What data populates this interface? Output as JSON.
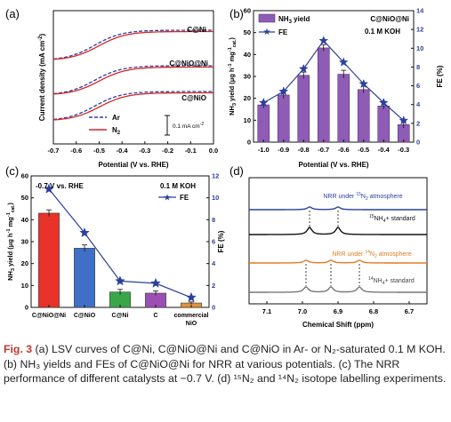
{
  "panels": {
    "a": {
      "letter": "(a)",
      "xlabel": "Potential (V vs. RHE)",
      "ylabel": "Current density (mA cm",
      "ylabel_sup": "-2",
      "ylabel_end": ")",
      "xticks": [
        "-0.7",
        "-0.6",
        "-0.5",
        "-0.4",
        "-0.3",
        "-0.2",
        "-0.1",
        "0.0"
      ],
      "curve_labels": [
        "C@Ni",
        "C@NiO@Ni",
        "C@NiO"
      ],
      "legend": {
        "ar": "Ar",
        "n2": "N",
        "n2_sub": "2"
      },
      "scale_bar": "0.1 mA cm",
      "scale_bar_sup": "-2",
      "colors": {
        "ar": "#2b3f9e",
        "n2": "#d62728"
      }
    },
    "b": {
      "letter": "(b)",
      "annotation1": "C@NiO@Ni",
      "annotation2": "0.1 M KOH",
      "legend_bar": "NH",
      "legend_bar_sub": "3",
      "legend_bar_end": " yield",
      "legend_line": "FE",
      "ylabel_left": "NH",
      "ylabel_left_sub": "3",
      "ylabel_left_end": " yield (μg h",
      "ylabel_left_sup": "-1",
      "ylabel_left_end2": " mg",
      "ylabel_left_sup2": "-1",
      "ylabel_left_sub2": "cat.",
      "ylabel_left_end3": ")",
      "ylabel_right": "FE (%)",
      "xlabel": "Potential (V vs. RHE)",
      "yticks_left": [
        "0",
        "10",
        "20",
        "30",
        "40",
        "50",
        "60"
      ],
      "yticks_right": [
        "0",
        "2",
        "4",
        "6",
        "8",
        "10",
        "12",
        "14"
      ],
      "colors": {
        "bar": "#8e5bb5",
        "bar_edge": "#5b3a7a",
        "line": "#2b3f9e"
      }
    },
    "c": {
      "letter": "(c)",
      "annotation1": "-0.7 V vs. RHE",
      "annotation2": "0.1 M KOH",
      "legend_line": "FE",
      "ylabel_left": "NH",
      "ylabel_left_sub": "3",
      "ylabel_left_end": " yield (μg h",
      "ylabel_left_sup": "-1",
      "ylabel_left_end2": " mg",
      "ylabel_left_sup2": "-1",
      "ylabel_left_sub2": "cat.",
      "ylabel_left_end3": ")",
      "ylabel_right": "FE (%)",
      "yticks_left": [
        "0",
        "10",
        "20",
        "30",
        "40",
        "50",
        "60"
      ],
      "yticks_right": [
        "0",
        "2",
        "4",
        "6",
        "8",
        "10",
        "12"
      ],
      "categories": [
        "C@NiO@Ni",
        "C@NiO",
        "C@Ni",
        "C",
        "commercial NiO"
      ],
      "bar_colors": [
        "#e8332a",
        "#3f6fc7",
        "#3aa64a",
        "#9b4fb5",
        "#e0933a"
      ],
      "colors": {
        "line": "#2b3f9e"
      }
    },
    "d": {
      "letter": "(d)",
      "xlabel": "Chemical Shift (ppm)",
      "xticks": [
        "7.1",
        "7.0",
        "6.9",
        "6.8",
        "6.7"
      ],
      "labels": [
        {
          "pre": "NRR under ",
          "sup": "15",
          "main": "N",
          "sub": "2",
          "post": " atmosphere",
          "color": "#2b3f9e"
        },
        {
          "pre": "",
          "sup": "15",
          "main": "NH",
          "sub": "4",
          "post": "+ standard",
          "color": "#111111"
        },
        {
          "pre": "NRR under ",
          "sup": "14",
          "main": "N",
          "sub": "2",
          "post": " atmosphere",
          "color": "#e07b22"
        },
        {
          "pre": "",
          "sup": "14",
          "main": "NH",
          "sub": "4",
          "post": "+ standard",
          "color": "#444444"
        }
      ],
      "colors": {
        "c15n2": "#2b3f9e",
        "c15std": "#111111",
        "c14n2": "#e07b22",
        "c14std": "#777777"
      }
    }
  },
  "chart_data": [
    {
      "panel": "b",
      "type": "bar",
      "categories": [
        "-1.0",
        "-0.9",
        "-0.8",
        "-0.7",
        "-0.6",
        "-0.5",
        "-0.4",
        "-0.3"
      ],
      "series": [
        {
          "name": "NH3 yield",
          "axis": "left",
          "values": [
            17,
            21.5,
            30.5,
            43,
            31,
            24,
            16.5,
            8
          ],
          "errors": [
            1.5,
            1.5,
            1.5,
            1.5,
            1.8,
            1.5,
            1.5,
            1.5
          ]
        },
        {
          "name": "FE",
          "type": "line",
          "axis": "right",
          "values": [
            4.2,
            5.4,
            7.8,
            10.8,
            8.5,
            6.2,
            4.2,
            2.3
          ]
        }
      ],
      "ylim_left": [
        0,
        60
      ],
      "ylim_right": [
        0,
        14
      ]
    },
    {
      "panel": "c",
      "type": "bar",
      "categories": [
        "C@NiO@Ni",
        "C@NiO",
        "C@Ni",
        "C",
        "commercial NiO"
      ],
      "series": [
        {
          "name": "NH3 yield",
          "axis": "left",
          "values": [
            43,
            27,
            7,
            6.5,
            2
          ],
          "errors": [
            1.5,
            1.5,
            1.2,
            1.0,
            0.5
          ]
        },
        {
          "name": "FE",
          "type": "line",
          "axis": "right",
          "values": [
            10.8,
            6.8,
            2.4,
            2.2,
            0.9
          ]
        }
      ],
      "ylim_left": [
        0,
        60
      ],
      "ylim_right": [
        0,
        12
      ]
    },
    {
      "panel": "a",
      "type": "line",
      "x_range": [
        -0.7,
        0.0
      ],
      "curves": [
        "C@Ni",
        "C@NiO@Ni",
        "C@NiO"
      ],
      "series": [
        "Ar",
        "N2"
      ]
    },
    {
      "panel": "d",
      "type": "line",
      "x_range": [
        7.15,
        6.65
      ],
      "peak_positions_15N": [
        6.98,
        6.9
      ],
      "peak_positions_14N": [
        6.99,
        6.92,
        6.84
      ]
    }
  ],
  "caption": {
    "label": "Fig. 3",
    "text": "  (a) LSV curves of C@Ni, C@NiO@Ni and C@NiO in Ar- or N₂-saturated 0.1 M KOH. (b) NH₃ yields and FEs of C@NiO@Ni for NRR at various potentials. (c) The NRR performance of different catalysts at −0.7 V. (d) ¹⁵N₂ and ¹⁴N₂ isotope labelling experiments."
  }
}
